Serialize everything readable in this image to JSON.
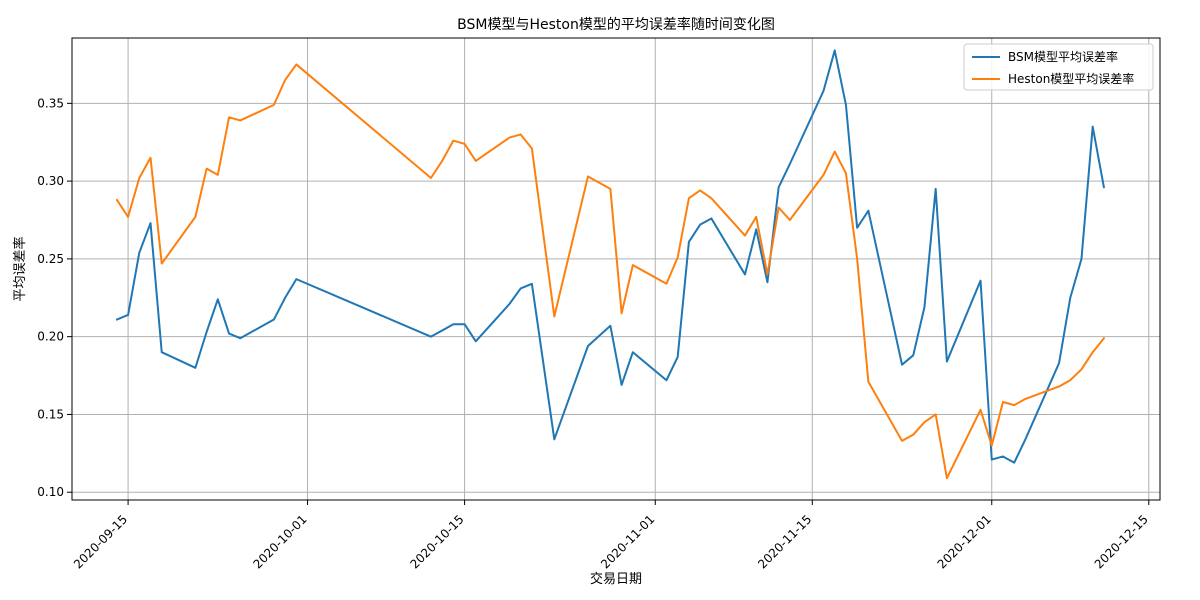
{
  "chart_data": {
    "type": "line",
    "title": "BSM模型与Heston模型的平均误差率随时间变化图",
    "xlabel": "交易日期",
    "ylabel": "平均误差率",
    "x_tick_labels": [
      "2020-09-15",
      "2020-10-01",
      "2020-10-15",
      "2020-11-01",
      "2020-11-15",
      "2020-12-01",
      "2020-12-15"
    ],
    "y_ticks": [
      0.1,
      0.15,
      0.2,
      0.25,
      0.3,
      0.35
    ],
    "y_tick_labels": [
      "0.10",
      "0.15",
      "0.20",
      "0.25",
      "0.30",
      "0.35"
    ],
    "xlim": [
      "2020-09-10",
      "2020-12-16"
    ],
    "ylim": [
      0.095,
      0.392
    ],
    "grid": true,
    "legend_position": "top-right",
    "series": [
      {
        "name": "BSM模型平均误差率",
        "color": "#1f77b4",
        "points": [
          [
            "2020-09-14",
            0.211
          ],
          [
            "2020-09-15",
            0.214
          ],
          [
            "2020-09-16",
            0.254
          ],
          [
            "2020-09-17",
            0.273
          ],
          [
            "2020-09-18",
            0.19
          ],
          [
            "2020-09-21",
            0.18
          ],
          [
            "2020-09-22",
            0.203
          ],
          [
            "2020-09-23",
            0.224
          ],
          [
            "2020-09-24",
            0.202
          ],
          [
            "2020-09-25",
            0.199
          ],
          [
            "2020-09-28",
            0.211
          ],
          [
            "2020-09-29",
            0.225
          ],
          [
            "2020-09-30",
            0.237
          ],
          [
            "2020-10-12",
            0.2
          ],
          [
            "2020-10-13",
            0.204
          ],
          [
            "2020-10-14",
            0.208
          ],
          [
            "2020-10-15",
            0.208
          ],
          [
            "2020-10-16",
            0.197
          ],
          [
            "2020-10-19",
            0.221
          ],
          [
            "2020-10-20",
            0.231
          ],
          [
            "2020-10-21",
            0.234
          ],
          [
            "2020-10-23",
            0.134
          ],
          [
            "2020-10-26",
            0.194
          ],
          [
            "2020-10-28",
            0.207
          ],
          [
            "2020-10-29",
            0.169
          ],
          [
            "2020-10-30",
            0.19
          ],
          [
            "2020-11-02",
            0.172
          ],
          [
            "2020-11-03",
            0.187
          ],
          [
            "2020-11-04",
            0.261
          ],
          [
            "2020-11-05",
            0.272
          ],
          [
            "2020-11-06",
            0.276
          ],
          [
            "2020-11-09",
            0.24
          ],
          [
            "2020-11-10",
            0.269
          ],
          [
            "2020-11-11",
            0.235
          ],
          [
            "2020-11-12",
            0.296
          ],
          [
            "2020-11-13",
            0.311
          ],
          [
            "2020-11-16",
            0.358
          ],
          [
            "2020-11-17",
            0.384
          ],
          [
            "2020-11-18",
            0.349
          ],
          [
            "2020-11-19",
            0.27
          ],
          [
            "2020-11-20",
            0.281
          ],
          [
            "2020-11-23",
            0.182
          ],
          [
            "2020-11-24",
            0.188
          ],
          [
            "2020-11-25",
            0.219
          ],
          [
            "2020-11-26",
            0.295
          ],
          [
            "2020-11-27",
            0.184
          ],
          [
            "2020-11-30",
            0.236
          ],
          [
            "2020-12-01",
            0.121
          ],
          [
            "2020-12-02",
            0.123
          ],
          [
            "2020-12-03",
            0.119
          ],
          [
            "2020-12-04",
            0.134
          ],
          [
            "2020-12-07",
            0.183
          ],
          [
            "2020-12-08",
            0.225
          ],
          [
            "2020-12-09",
            0.25
          ],
          [
            "2020-12-10",
            0.335
          ],
          [
            "2020-12-11",
            0.296
          ]
        ]
      },
      {
        "name": "Heston模型平均误差率",
        "color": "#ff7f0e",
        "points": [
          [
            "2020-09-14",
            0.288
          ],
          [
            "2020-09-15",
            0.277
          ],
          [
            "2020-09-16",
            0.302
          ],
          [
            "2020-09-17",
            0.315
          ],
          [
            "2020-09-18",
            0.247
          ],
          [
            "2020-09-21",
            0.277
          ],
          [
            "2020-09-22",
            0.308
          ],
          [
            "2020-09-23",
            0.304
          ],
          [
            "2020-09-24",
            0.341
          ],
          [
            "2020-09-25",
            0.339
          ],
          [
            "2020-09-28",
            0.349
          ],
          [
            "2020-09-29",
            0.365
          ],
          [
            "2020-09-30",
            0.375
          ],
          [
            "2020-10-12",
            0.302
          ],
          [
            "2020-10-13",
            0.313
          ],
          [
            "2020-10-14",
            0.326
          ],
          [
            "2020-10-15",
            0.324
          ],
          [
            "2020-10-16",
            0.313
          ],
          [
            "2020-10-19",
            0.328
          ],
          [
            "2020-10-20",
            0.33
          ],
          [
            "2020-10-21",
            0.321
          ],
          [
            "2020-10-23",
            0.213
          ],
          [
            "2020-10-26",
            0.303
          ],
          [
            "2020-10-28",
            0.295
          ],
          [
            "2020-10-29",
            0.215
          ],
          [
            "2020-10-30",
            0.246
          ],
          [
            "2020-11-02",
            0.234
          ],
          [
            "2020-11-03",
            0.251
          ],
          [
            "2020-11-04",
            0.289
          ],
          [
            "2020-11-05",
            0.294
          ],
          [
            "2020-11-06",
            0.289
          ],
          [
            "2020-11-09",
            0.265
          ],
          [
            "2020-11-10",
            0.277
          ],
          [
            "2020-11-11",
            0.24
          ],
          [
            "2020-11-12",
            0.283
          ],
          [
            "2020-11-13",
            0.275
          ],
          [
            "2020-11-16",
            0.304
          ],
          [
            "2020-11-17",
            0.319
          ],
          [
            "2020-11-18",
            0.305
          ],
          [
            "2020-11-19",
            0.25
          ],
          [
            "2020-11-20",
            0.171
          ],
          [
            "2020-11-23",
            0.133
          ],
          [
            "2020-11-24",
            0.137
          ],
          [
            "2020-11-25",
            0.145
          ],
          [
            "2020-11-26",
            0.15
          ],
          [
            "2020-11-27",
            0.109
          ],
          [
            "2020-11-30",
            0.153
          ],
          [
            "2020-12-01",
            0.13
          ],
          [
            "2020-12-02",
            0.158
          ],
          [
            "2020-12-03",
            0.156
          ],
          [
            "2020-12-04",
            0.16
          ],
          [
            "2020-12-07",
            0.168
          ],
          [
            "2020-12-08",
            0.172
          ],
          [
            "2020-12-09",
            0.179
          ],
          [
            "2020-12-10",
            0.19
          ],
          [
            "2020-12-11",
            0.199
          ]
        ]
      }
    ]
  }
}
